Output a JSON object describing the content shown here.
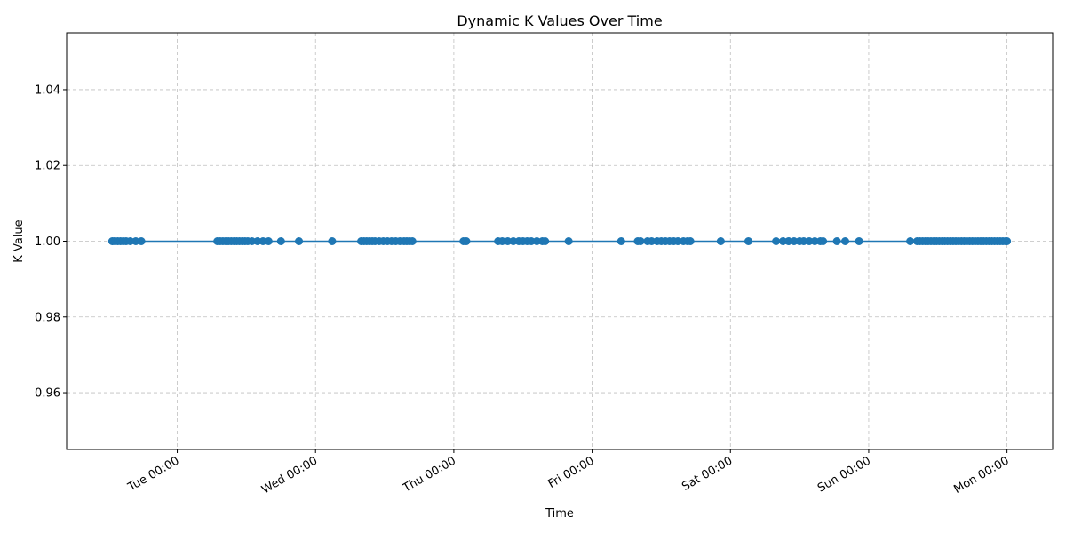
{
  "chart_data": {
    "type": "line",
    "title": "Dynamic K Values Over Time",
    "xlabel": "Time",
    "ylabel": "K Value",
    "ylim": [
      0.945,
      1.055
    ],
    "yticks": [
      "0.96",
      "0.98",
      "1.00",
      "1.02",
      "1.04"
    ],
    "x_axis": {
      "ticks": [
        {
          "label": "Tue 00:00",
          "day": 1
        },
        {
          "label": "Wed 00:00",
          "day": 2
        },
        {
          "label": "Thu 00:00",
          "day": 3
        },
        {
          "label": "Fri 00:00",
          "day": 4
        },
        {
          "label": "Sat 00:00",
          "day": 5
        },
        {
          "label": "Sun 00:00",
          "day": 6
        },
        {
          "label": "Mon 00:00",
          "day": 7
        }
      ],
      "xlim_days": [
        0.2,
        7.33
      ]
    },
    "grid": true,
    "marker": "circle",
    "color": "#1f77b4",
    "series": [
      {
        "name": "",
        "x_days": [
          0.53,
          0.55,
          0.57,
          0.59,
          0.61,
          0.63,
          0.66,
          0.7,
          0.74,
          1.29,
          1.31,
          1.33,
          1.35,
          1.37,
          1.39,
          1.41,
          1.43,
          1.45,
          1.47,
          1.49,
          1.51,
          1.54,
          1.58,
          1.62,
          1.66,
          1.75,
          1.88,
          2.12,
          2.33,
          2.35,
          2.37,
          2.39,
          2.41,
          2.43,
          2.46,
          2.49,
          2.52,
          2.55,
          2.58,
          2.61,
          2.64,
          2.66,
          2.68,
          2.7,
          3.07,
          3.09,
          3.32,
          3.35,
          3.39,
          3.43,
          3.47,
          3.5,
          3.53,
          3.56,
          3.6,
          3.64,
          3.66,
          3.83,
          4.21,
          4.33,
          4.35,
          4.4,
          4.43,
          4.47,
          4.5,
          4.53,
          4.56,
          4.59,
          4.62,
          4.66,
          4.69,
          4.71,
          4.93,
          5.13,
          5.33,
          5.38,
          5.42,
          5.46,
          5.5,
          5.53,
          5.57,
          5.61,
          5.65,
          5.67,
          5.77,
          5.83,
          5.93,
          6.3,
          6.35,
          6.37,
          6.39,
          6.41,
          6.43,
          6.45,
          6.47,
          6.49,
          6.51,
          6.53,
          6.55,
          6.57,
          6.59,
          6.61,
          6.63,
          6.65,
          6.67,
          6.69,
          6.71,
          6.73,
          6.75,
          6.77,
          6.79,
          6.81,
          6.83,
          6.85,
          6.87,
          6.89,
          6.91,
          6.93,
          6.95,
          6.97,
          6.99,
          7.0
        ],
        "y": 1.0
      }
    ]
  }
}
